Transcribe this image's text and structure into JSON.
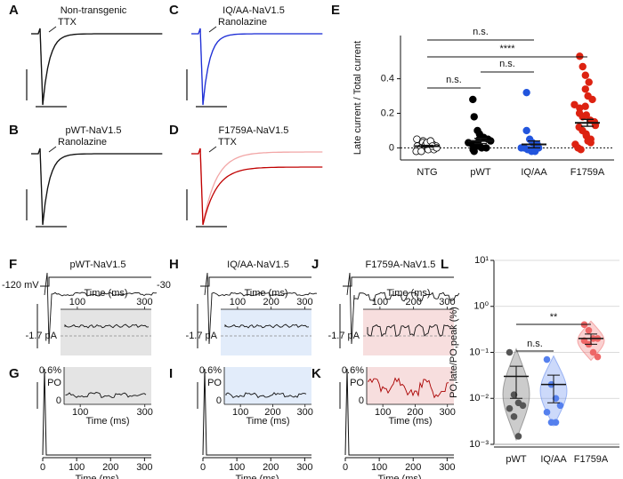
{
  "chart_data": [
    {
      "type": "trace",
      "panel": "A",
      "title": "Non-transgenic",
      "annotation": "TTX",
      "colors": [
        "#111111",
        "#9a9a9a"
      ]
    },
    {
      "type": "trace",
      "panel": "B",
      "title": "pWT-NaV1.5",
      "annotation": "Ranolazine",
      "colors": [
        "#111111",
        "#b0b0b0"
      ]
    },
    {
      "type": "trace",
      "panel": "C",
      "title": "IQ/AA-NaV1.5",
      "annotation": "Ranolazine",
      "colors": [
        "#1f2fd6",
        "#a8b4f0"
      ]
    },
    {
      "type": "trace",
      "panel": "D",
      "title": "F1759A-NaV1.5",
      "annotation": "TTX",
      "colors": [
        "#c00000",
        "#f2a6a6"
      ]
    },
    {
      "type": "dot",
      "panel": "E",
      "ylabel": "Late current / Total current",
      "categories": [
        "NTG",
        "pWT",
        "IQ/AA",
        "F1759A"
      ],
      "colors": [
        "#ffffff",
        "#000000",
        "#2255dd",
        "#dd2211"
      ],
      "values": [
        [
          0.05,
          0.04,
          0.03,
          0.03,
          0.02,
          0.02,
          0.01,
          0.01,
          0.01,
          0.0,
          0.0,
          0.0,
          -0.01,
          -0.01,
          -0.02,
          -0.02,
          0.02,
          0.03,
          0.04,
          0.01,
          0.0
        ],
        [
          0.28,
          0.18,
          0.1,
          0.08,
          0.06,
          0.05,
          0.04,
          0.03,
          0.02,
          0.02,
          0.01,
          0.01,
          0.0,
          0.0,
          -0.01,
          -0.02,
          0.03,
          0.05
        ],
        [
          0.32,
          0.1,
          0.05,
          0.03,
          0.02,
          0.01,
          0.0,
          0.0,
          0.0,
          -0.01,
          -0.01,
          -0.02,
          -0.02
        ],
        [
          0.53,
          0.47,
          0.42,
          0.38,
          0.34,
          0.3,
          0.28,
          0.25,
          0.23,
          0.2,
          0.18,
          0.16,
          0.15,
          0.13,
          0.12,
          0.1,
          0.08,
          0.07,
          0.05,
          0.04,
          0.03,
          0.02,
          0.0,
          -0.01,
          0.24,
          0.19
        ]
      ],
      "means": [
        0.01,
        0.04,
        0.02,
        0.145
      ],
      "errors": [
        0.005,
        0.015,
        0.02,
        0.02
      ],
      "reference_line": 0,
      "ylim": [
        -0.07,
        0.65
      ],
      "yticks": [
        0,
        0.2,
        0.4
      ],
      "annotations": [
        "n.s.",
        "****",
        "n.s.",
        "n.s."
      ]
    },
    {
      "type": "single-channel",
      "panel": "F",
      "title": "pWT-NaV1.5",
      "labels": [
        "-120 mV",
        "-30",
        "-1.7 pA"
      ],
      "inset_xlabel": "Time (ms)",
      "inset_xlim": [
        50,
        320
      ],
      "inset_xticks": [
        100,
        300
      ],
      "shade": "#e4e4e4",
      "openings": false
    },
    {
      "type": "single-channel",
      "panel": "H",
      "title": "IQ/AA-NaV1.5",
      "labels": [
        "-1.7 pA"
      ],
      "inset_xlabel": "Time (ms)",
      "inset_xlim": [
        50,
        320
      ],
      "inset_xticks": [
        100,
        200,
        300
      ],
      "shade": "#e2ecfa",
      "openings": false
    },
    {
      "type": "single-channel",
      "panel": "J",
      "title": "F1759A-NaV1.5",
      "labels": [
        "-1.7 pA"
      ],
      "inset_xlabel": "Time (ms)",
      "inset_xlim": [
        50,
        320
      ],
      "inset_xticks": [
        100,
        200,
        300
      ],
      "shade": "#f7dede",
      "openings": true
    },
    {
      "type": "ensemble",
      "panel": "G",
      "xlabel": "Time (ms)",
      "xlim": [
        0,
        320
      ],
      "xticks": [
        0,
        100,
        200,
        300
      ],
      "inset_labels": [
        "0.6%",
        "PO",
        "0"
      ],
      "inset_xlabel": "Time (ms)",
      "inset_xlim": [
        50,
        320
      ],
      "inset_xticks": [
        100,
        300
      ],
      "shade": "#e4e4e4",
      "trace_color": "#111111"
    },
    {
      "type": "ensemble",
      "panel": "I",
      "xlabel": "Time (ms)",
      "xlim": [
        0,
        320
      ],
      "xticks": [
        0,
        100,
        200,
        300
      ],
      "inset_labels": [
        "0.6%",
        "PO",
        "0"
      ],
      "inset_xlabel": "Time (ms)",
      "inset_xlim": [
        50,
        320
      ],
      "inset_xticks": [
        100,
        200,
        300
      ],
      "shade": "#e2ecfa",
      "trace_color": "#111111"
    },
    {
      "type": "ensemble",
      "panel": "K",
      "xlabel": "Time (ms)",
      "xlim": [
        0,
        320
      ],
      "xticks": [
        0,
        100,
        200,
        300
      ],
      "inset_labels": [
        "0.6%",
        "PO",
        "0"
      ],
      "inset_xlabel": "Time (ms)",
      "inset_xlim": [
        50,
        320
      ],
      "inset_xticks": [
        100,
        200,
        300
      ],
      "shade": "#f7dede",
      "trace_color": "#aa0000"
    },
    {
      "type": "logdot",
      "panel": "L",
      "ylabel": "PO,late/PO,peak (%)",
      "log_scale": true,
      "grid": true,
      "categories": [
        "pWT",
        "IQ/AA",
        "F1759A"
      ],
      "colors": [
        "#555555",
        "#5580ee",
        "#ee6666"
      ],
      "values": [
        [
          0.1,
          0.012,
          0.008,
          0.007,
          0.006,
          0.004,
          0.0015
        ],
        [
          0.07,
          0.02,
          0.01,
          0.007,
          0.005,
          0.003,
          0.003
        ],
        [
          0.4,
          0.3,
          0.2,
          0.2,
          0.18,
          0.15,
          0.1,
          0.08
        ]
      ],
      "means": [
        0.03,
        0.02,
        0.2
      ],
      "errors": [
        0.02,
        0.012,
        0.05
      ],
      "ylim": [
        0.001,
        10
      ],
      "yticks": [
        {
          "value": 0.001,
          "label": "10⁻³"
        },
        {
          "value": 0.01,
          "label": "10⁻²"
        },
        {
          "value": 0.1,
          "label": "10⁻¹"
        },
        {
          "value": 1,
          "label": "10⁰"
        },
        {
          "value": 10,
          "label": "10¹"
        }
      ],
      "annotations": [
        "n.s.",
        "**"
      ]
    }
  ]
}
